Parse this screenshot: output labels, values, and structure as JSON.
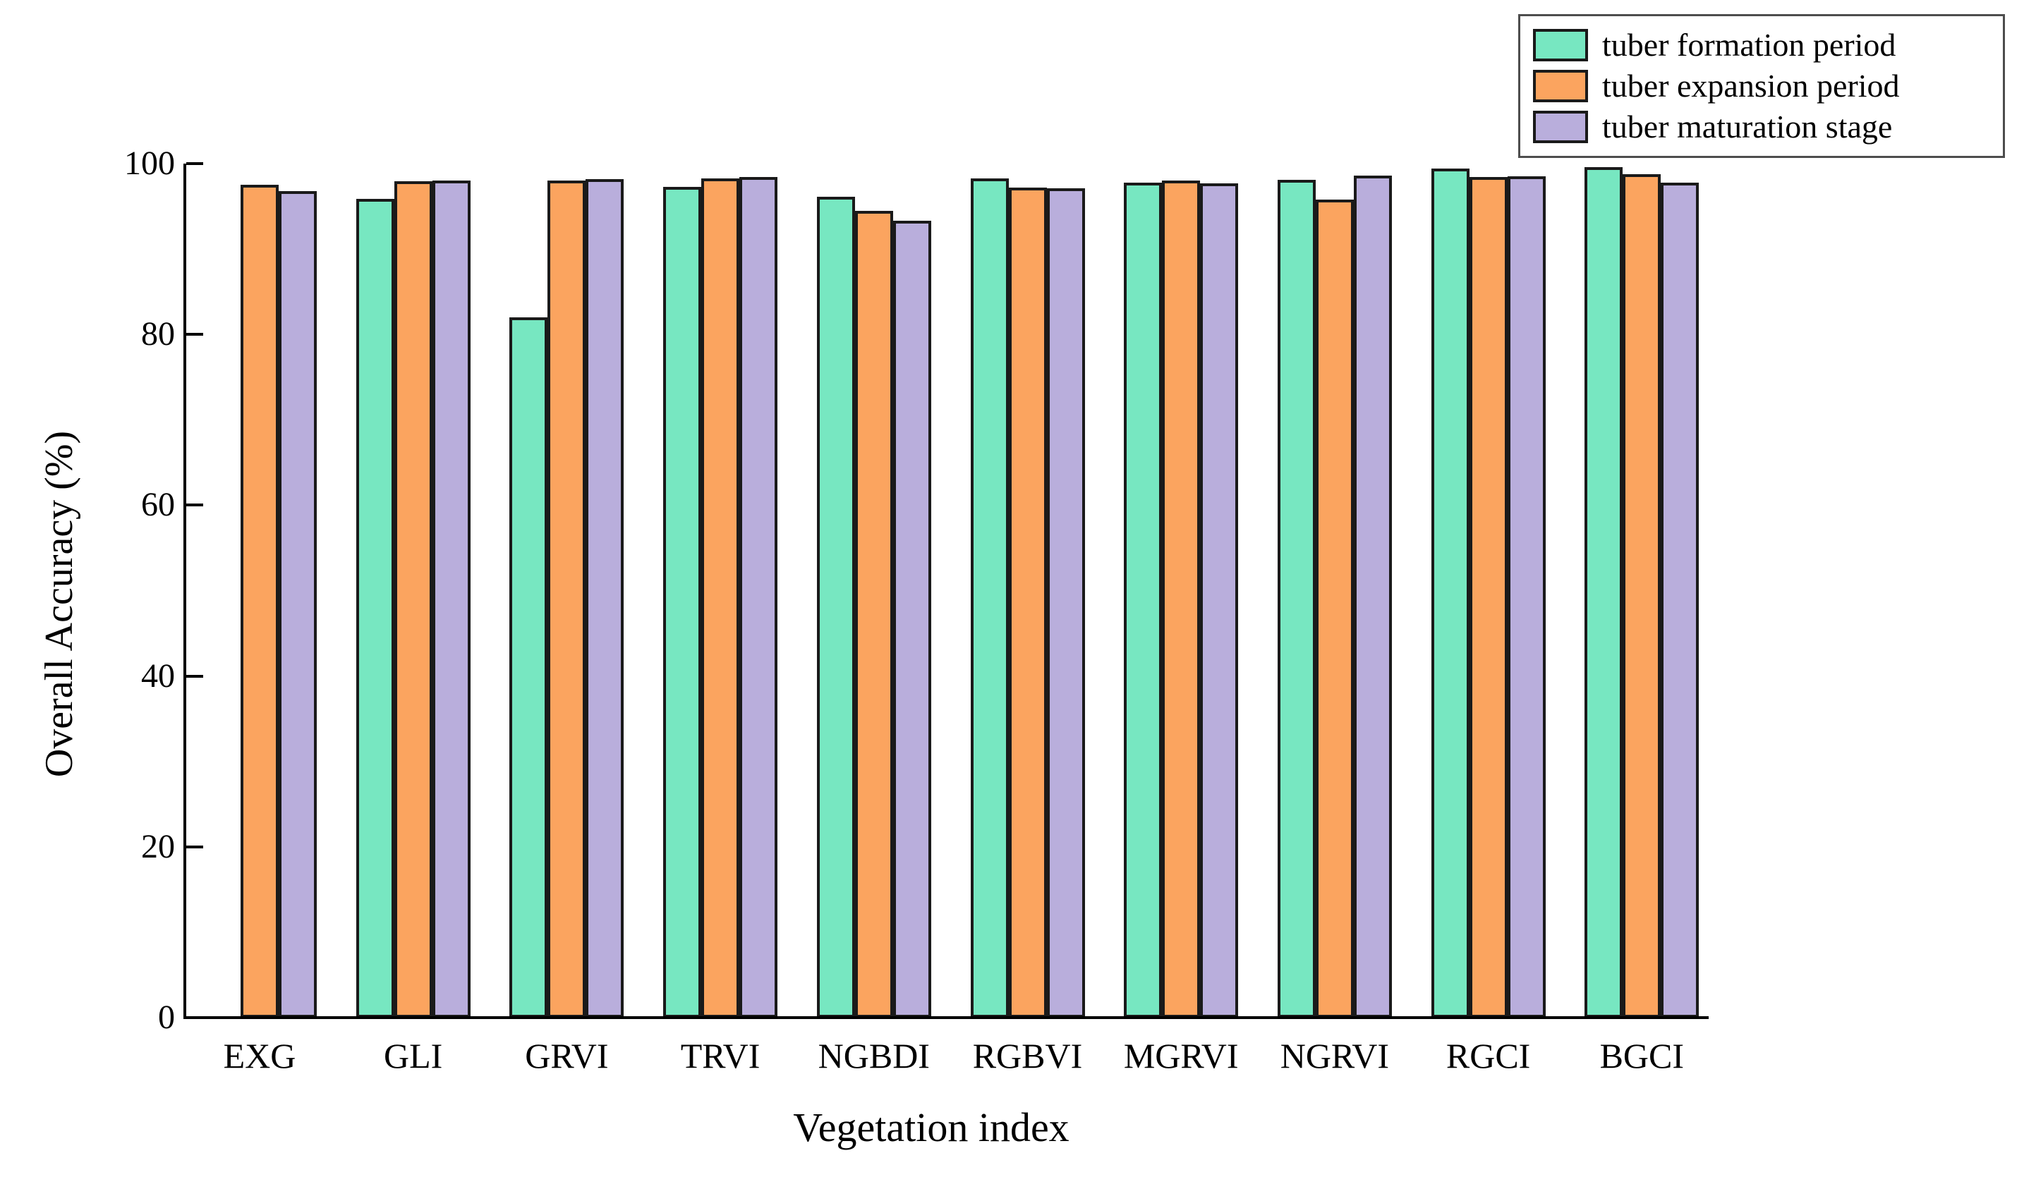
{
  "chart_data": {
    "type": "bar",
    "title": "",
    "xlabel": "Vegetation index",
    "ylabel": "Overall Accuracy (%)",
    "ylim": [
      0,
      100
    ],
    "yticks": [
      "0",
      "20",
      "40",
      "60",
      "80",
      "100"
    ],
    "grid": false,
    "legend_position": "top-right",
    "bar_border_color": "#1a1a1a",
    "categories": [
      "EXG",
      "GLI",
      "GRVI",
      "TRVI",
      "NGBDI",
      "RGBVI",
      "MGRVI",
      "NGRVI",
      "RGCI",
      "BGCI"
    ],
    "series": [
      {
        "name": "tuber formation period",
        "color": "#77E7C1",
        "values": [
          0,
          95.9,
          82.0,
          97.3,
          96.1,
          98.3,
          97.8,
          98.1,
          99.4,
          99.6
        ]
      },
      {
        "name": "tuber expansion period",
        "color": "#FBA45F",
        "values": [
          97.5,
          97.9,
          98.0,
          98.3,
          94.5,
          97.2,
          98.0,
          95.8,
          98.4,
          98.8
        ]
      },
      {
        "name": "tuber maturation stage",
        "color": "#B9AEDC",
        "values": [
          96.8,
          98.0,
          98.2,
          98.4,
          93.3,
          97.1,
          97.7,
          98.6,
          98.5,
          97.8
        ]
      }
    ]
  }
}
